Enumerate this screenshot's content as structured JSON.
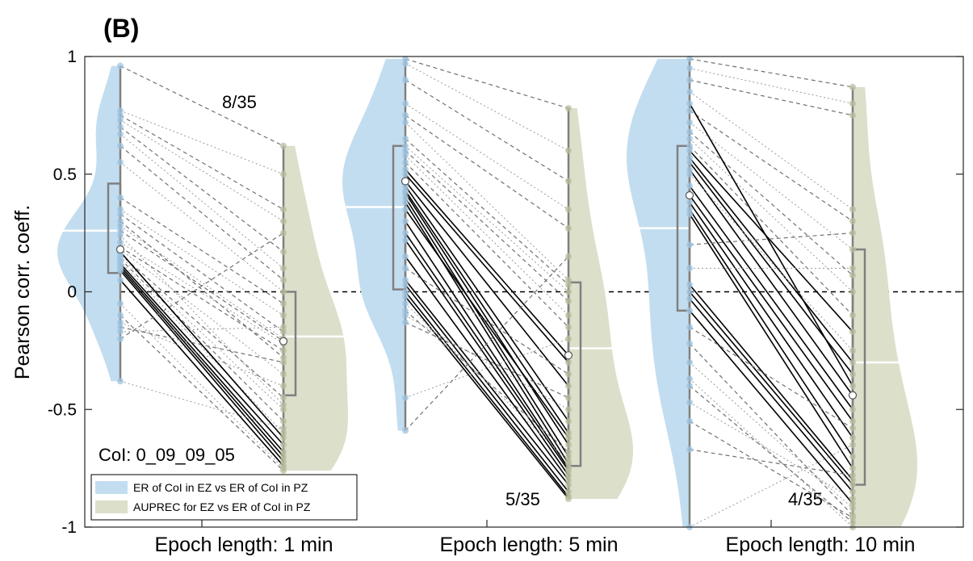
{
  "panel_label": "(B)",
  "chart_data": {
    "type": "violin-paired",
    "ylabel": "Pearson corr. coeff.",
    "xlabel": "",
    "ylim": [
      -1,
      1
    ],
    "yticks": [
      -1,
      -0.5,
      0,
      0.5,
      1
    ],
    "ytick_labels": [
      "-1",
      "-0.5",
      "0",
      "0.5",
      "1"
    ],
    "reference_line": 0,
    "categories": [
      "Epoch length: 1 min",
      "Epoch length: 5 min",
      "Epoch length: 10 min"
    ],
    "colors": {
      "series1": "#c3ddf0",
      "series2": "#dcdfca",
      "box": "#808080",
      "median_line": "#ffffff"
    },
    "annotation_text": "CoI: 0_09_09_05",
    "legend": {
      "placement": "bottom-left",
      "entries": [
        "ER of CoI in EZ vs ER of CoI in PZ",
        "AUPREC for EZ vs ER of CoI in PZ"
      ]
    },
    "groups": [
      {
        "category": "Epoch length: 1 min",
        "count_label": "8/35",
        "series1": {
          "name": "ER of CoI in EZ vs ER of CoI in PZ",
          "points": [
            0.96,
            0.77,
            0.75,
            0.73,
            0.7,
            0.67,
            0.62,
            0.55,
            0.4,
            0.35,
            0.33,
            0.28,
            0.26,
            0.21,
            0.19,
            0.18,
            0.16,
            0.15,
            0.14,
            0.13,
            0.12,
            0.11,
            0.1,
            0.09,
            0.05,
            -0.05,
            -0.1,
            -0.13,
            -0.15,
            -0.17,
            -0.2,
            -0.38,
            0.17,
            0.24,
            0.3
          ],
          "box": {
            "q1": 0.08,
            "median": 0.18,
            "q3": 0.46,
            "min": -0.38,
            "max": 0.96
          },
          "mean": 0.26
        },
        "series2": {
          "name": "AUPREC for EZ vs ER of CoI in PZ",
          "points": [
            0.62,
            0.5,
            0.35,
            0.3,
            0.17,
            0.1,
            0.05,
            0.0,
            -0.05,
            -0.1,
            -0.17,
            -0.2,
            -0.21,
            -0.22,
            -0.25,
            -0.35,
            -0.45,
            -0.5,
            -0.55,
            -0.6,
            -0.65,
            -0.68,
            -0.7,
            -0.72,
            -0.74,
            -0.75,
            -0.76,
            -0.4,
            -0.3,
            -0.15,
            0.25,
            -0.58,
            -0.62,
            -0.48,
            -0.28
          ],
          "box": {
            "q1": -0.44,
            "median": -0.21,
            "q3": 0.0,
            "min": -0.76,
            "max": 0.62
          },
          "mean": -0.19
        }
      },
      {
        "category": "Epoch length: 5 min",
        "count_label": "5/35",
        "series1": {
          "name": "ER of CoI in EZ vs ER of CoI in PZ",
          "points": [
            0.99,
            0.97,
            0.9,
            0.8,
            0.75,
            0.72,
            0.65,
            0.62,
            0.6,
            0.58,
            0.55,
            0.52,
            0.5,
            0.47,
            0.45,
            0.43,
            0.42,
            0.4,
            0.38,
            0.3,
            0.22,
            0.05,
            0.03,
            0.0,
            -0.02,
            -0.05,
            -0.08,
            -0.1,
            -0.13,
            -0.45,
            -0.59,
            0.35,
            0.25,
            0.15,
            0.1
          ],
          "box": {
            "q1": 0.01,
            "median": 0.47,
            "q3": 0.62,
            "min": -0.59,
            "max": 0.99
          },
          "mean": 0.36
        },
        "series2": {
          "name": "AUPREC for EZ vs ER of CoI in PZ",
          "points": [
            0.78,
            0.6,
            0.47,
            0.35,
            0.27,
            0.05,
            0.03,
            0.0,
            -0.04,
            -0.1,
            -0.15,
            -0.27,
            -0.3,
            -0.4,
            -0.55,
            -0.6,
            -0.65,
            -0.7,
            -0.73,
            -0.75,
            -0.78,
            -0.82,
            -0.85,
            -0.87,
            -0.88,
            -0.72,
            -0.68,
            -0.5,
            -0.45,
            -0.2,
            0.15,
            -0.62,
            -0.76,
            -0.8,
            -0.35
          ],
          "box": {
            "q1": -0.74,
            "median": -0.27,
            "q3": 0.04,
            "min": -0.88,
            "max": 0.78
          },
          "mean": -0.24
        }
      },
      {
        "category": "Epoch length: 10 min",
        "count_label": "4/35",
        "series1": {
          "name": "ER of CoI in EZ vs ER of CoI in PZ",
          "points": [
            0.99,
            0.95,
            0.9,
            0.85,
            0.77,
            0.72,
            0.68,
            0.65,
            0.62,
            0.6,
            0.57,
            0.55,
            0.52,
            0.45,
            0.41,
            0.38,
            0.35,
            0.33,
            0.03,
            0.0,
            -0.03,
            -0.08,
            -0.22,
            -0.37,
            -0.4,
            -0.47,
            -0.67,
            -1.0,
            0.8,
            0.5,
            0.2,
            0.1,
            -0.15,
            -0.3,
            -0.55
          ],
          "box": {
            "q1": -0.08,
            "median": 0.41,
            "q3": 0.62,
            "min": -1.0,
            "max": 0.99
          },
          "mean": 0.27
        },
        "series2": {
          "name": "AUPREC for EZ vs ER of CoI in PZ",
          "points": [
            0.87,
            0.8,
            0.75,
            0.35,
            0.3,
            0.18,
            0.07,
            0.0,
            -0.1,
            -0.17,
            -0.3,
            -0.35,
            -0.44,
            -0.5,
            -0.55,
            -0.62,
            -0.7,
            -0.75,
            -0.8,
            -0.82,
            -0.85,
            -0.9,
            -0.95,
            -1.0,
            -0.98,
            -0.88,
            -0.78,
            -0.65,
            -0.4,
            -0.25,
            0.25,
            0.1,
            -0.58,
            -0.92,
            -0.96
          ],
          "box": {
            "q1": -0.82,
            "median": -0.44,
            "q3": 0.18,
            "min": -1.0,
            "max": 0.87
          },
          "mean": -0.3
        }
      }
    ]
  }
}
